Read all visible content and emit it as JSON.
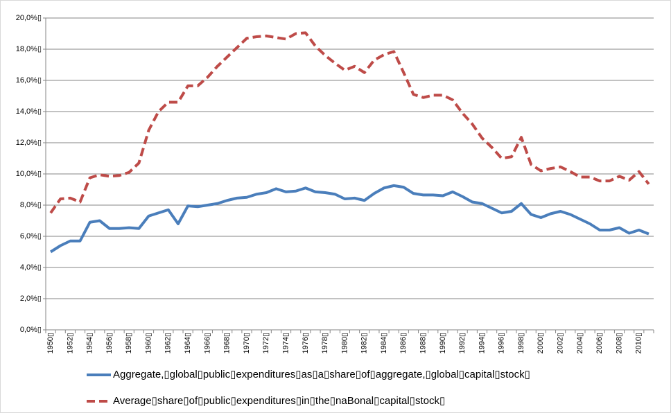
{
  "chart_data": {
    "type": "line",
    "categories": [
      "1950▯",
      null,
      "1952▯",
      null,
      "1954▯",
      null,
      "1956▯",
      null,
      "1958▯",
      null,
      "1960▯",
      null,
      "1962▯",
      null,
      "1964▯",
      null,
      "1966▯",
      null,
      "1968▯",
      null,
      "1970▯",
      null,
      "1972▯",
      null,
      "1974▯",
      null,
      "1976▯",
      null,
      "1978▯",
      null,
      "1980▯",
      null,
      "1982▯",
      null,
      "1984▯",
      null,
      "1986▯",
      null,
      "1988▯",
      null,
      "1990▯",
      null,
      "1992▯",
      null,
      "1994▯",
      null,
      "1996▯",
      null,
      "1998▯",
      null,
      "2000▯",
      null,
      "2002▯",
      null,
      "2004▯",
      null,
      "2006▯",
      null,
      "2008▯",
      null,
      "2010▯",
      null
    ],
    "series": [
      {
        "name": "Aggregate,▯global▯public▯expenditures▯as▯a▯share▯of▯aggregate,▯global▯capital▯stock▯",
        "color": "#4a7ebb",
        "dash": "solid",
        "values": [
          5.0,
          5.4,
          5.7,
          5.7,
          6.9,
          7.0,
          6.5,
          6.5,
          6.55,
          6.5,
          7.3,
          7.5,
          7.7,
          6.8,
          7.95,
          7.9,
          8.0,
          8.1,
          8.3,
          8.45,
          8.5,
          8.7,
          8.8,
          9.05,
          8.85,
          8.9,
          9.1,
          8.85,
          8.8,
          8.7,
          8.4,
          8.45,
          8.3,
          8.75,
          9.1,
          9.25,
          9.15,
          8.75,
          8.65,
          8.65,
          8.6,
          8.85,
          8.55,
          8.2,
          8.1,
          7.8,
          7.5,
          7.6,
          8.1,
          7.4,
          7.2,
          7.45,
          7.6,
          7.4,
          7.1,
          6.8,
          6.4,
          6.4,
          6.55,
          6.2,
          6.4,
          6.15
        ]
      },
      {
        "name": "Average▯share▯of▯public▯expenditures▯in▯the▯naBonal▯capital▯stock▯",
        "color": "#be4b48",
        "dash": "dashed",
        "values": [
          7.5,
          8.4,
          8.45,
          8.2,
          9.75,
          9.95,
          9.85,
          9.9,
          10.1,
          10.7,
          12.8,
          14.0,
          14.6,
          14.6,
          15.65,
          15.65,
          16.2,
          16.9,
          17.5,
          18.1,
          18.7,
          18.8,
          18.85,
          18.75,
          18.65,
          19.0,
          19.05,
          18.2,
          17.6,
          17.1,
          16.65,
          16.9,
          16.5,
          17.3,
          17.65,
          17.85,
          16.5,
          15.1,
          14.9,
          15.05,
          15.05,
          14.75,
          13.9,
          13.2,
          12.3,
          11.7,
          11.0,
          11.1,
          12.35,
          10.6,
          10.2,
          10.35,
          10.45,
          10.15,
          9.8,
          9.8,
          9.55,
          9.55,
          9.85,
          9.6,
          10.15,
          9.35
        ]
      }
    ],
    "ylim": [
      0,
      20
    ],
    "yticks": [
      {
        "value": 0,
        "label": "0,0%▯"
      },
      {
        "value": 2,
        "label": "2,0%▯"
      },
      {
        "value": 4,
        "label": "4,0%▯"
      },
      {
        "value": 6,
        "label": "6,0%▯"
      },
      {
        "value": 8,
        "label": "8,0%▯"
      },
      {
        "value": 10,
        "label": "10,0%▯"
      },
      {
        "value": 12,
        "label": "12,0%▯"
      },
      {
        "value": 14,
        "label": "14,0%▯"
      },
      {
        "value": 16,
        "label": "16,0%▯"
      },
      {
        "value": 18,
        "label": "18,0%▯"
      },
      {
        "value": 20,
        "label": "20,0%▯"
      }
    ],
    "grid": true,
    "legend": "bottom"
  }
}
